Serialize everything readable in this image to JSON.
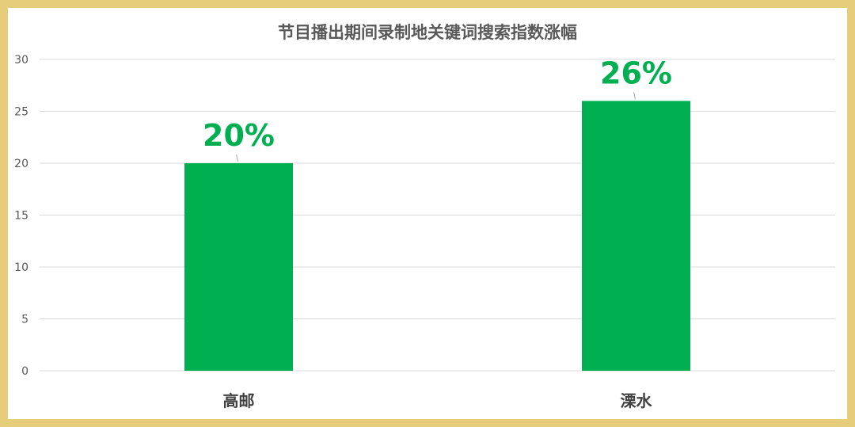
{
  "chart_data": {
    "type": "bar",
    "title": "节目播出期间录制地关键词搜索指数涨幅",
    "categories": [
      "高邮",
      "溧水"
    ],
    "values": [
      20,
      26
    ],
    "data_labels": [
      "20%",
      "26%"
    ],
    "yticks": [
      "0",
      "5",
      "10",
      "15",
      "20",
      "25",
      "30"
    ],
    "ylim": [
      0,
      30
    ],
    "grid": true,
    "colors": {
      "bar": "#00b050",
      "label": "#00b050",
      "border": "#e6cd7b",
      "title": "#595959"
    }
  }
}
